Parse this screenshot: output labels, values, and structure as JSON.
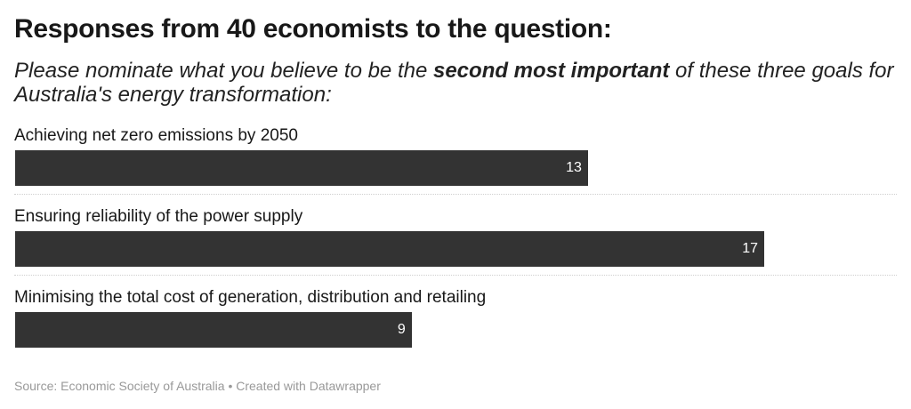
{
  "chart_data": {
    "type": "bar",
    "orientation": "horizontal",
    "title": "Responses from 40 economists to the question:",
    "subtitle": [
      {
        "text": "Please nominate what you believe to be the ",
        "bold": false
      },
      {
        "text": "second most important",
        "bold": true
      },
      {
        "text": " of these three goals for Australia's energy transformation:",
        "bold": false
      }
    ],
    "categories": [
      "Achieving net zero emissions by 2050",
      "Ensuring reliability of the power supply",
      "Minimising the total cost of generation, distribution and retailing"
    ],
    "values": [
      13,
      17,
      9
    ],
    "color": "#333333",
    "source": "Source: Economic Society of Australia • Created with Datawrapper"
  }
}
